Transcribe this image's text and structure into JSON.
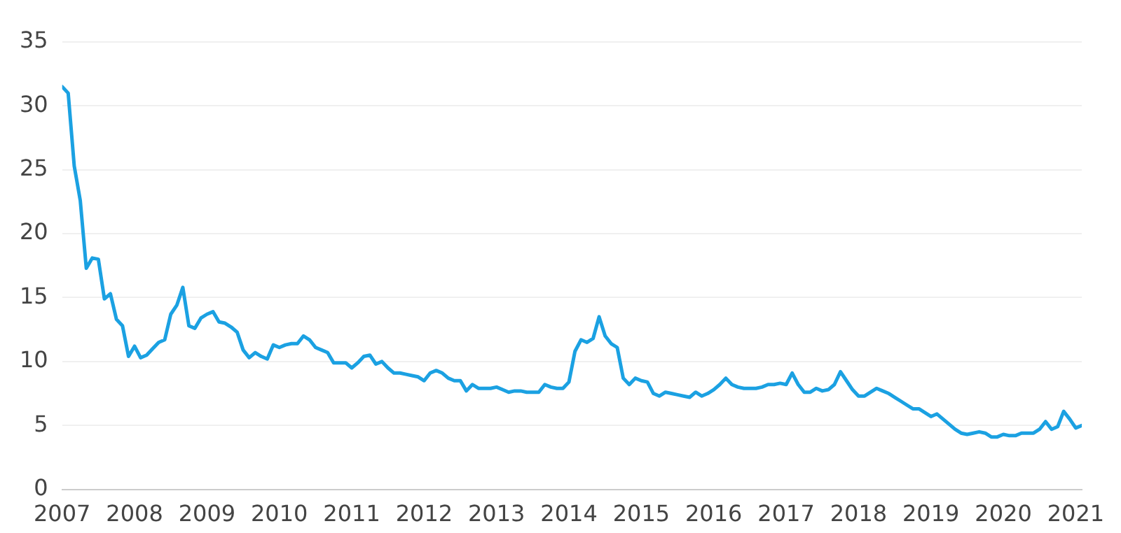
{
  "chart_data": {
    "type": "line",
    "xlim": [
      "2007-01",
      "2021-02"
    ],
    "xticks": [
      "2007",
      "2008",
      "2009",
      "2010",
      "2011",
      "2012",
      "2013",
      "2014",
      "2015",
      "2016",
      "2017",
      "2018",
      "2019",
      "2020",
      "2021"
    ],
    "ylim": [
      0,
      35
    ],
    "yticks": [
      0,
      5,
      10,
      15,
      20,
      25,
      30,
      35
    ],
    "grid": "y",
    "legend": false,
    "marker": "none",
    "line_style": "solid",
    "x": [
      "2007-01",
      "2007-02",
      "2007-03",
      "2007-04",
      "2007-05",
      "2007-06",
      "2007-07",
      "2007-08",
      "2007-09",
      "2007-10",
      "2007-11",
      "2007-12",
      "2008-01",
      "2008-02",
      "2008-03",
      "2008-04",
      "2008-05",
      "2008-06",
      "2008-07",
      "2008-08",
      "2008-09",
      "2008-10",
      "2008-11",
      "2008-12",
      "2009-01",
      "2009-02",
      "2009-03",
      "2009-04",
      "2009-05",
      "2009-06",
      "2009-07",
      "2009-08",
      "2009-09",
      "2009-10",
      "2009-11",
      "2009-12",
      "2010-01",
      "2010-02",
      "2010-03",
      "2010-04",
      "2010-05",
      "2010-06",
      "2010-07",
      "2010-08",
      "2010-09",
      "2010-10",
      "2010-11",
      "2010-12",
      "2011-01",
      "2011-02",
      "2011-03",
      "2011-04",
      "2011-05",
      "2011-06",
      "2011-07",
      "2011-08",
      "2011-09",
      "2011-10",
      "2011-11",
      "2011-12",
      "2012-01",
      "2012-02",
      "2012-03",
      "2012-04",
      "2012-05",
      "2012-06",
      "2012-07",
      "2012-08",
      "2012-09",
      "2012-10",
      "2012-11",
      "2012-12",
      "2013-01",
      "2013-02",
      "2013-03",
      "2013-04",
      "2013-05",
      "2013-06",
      "2013-07",
      "2013-08",
      "2013-09",
      "2013-10",
      "2013-11",
      "2013-12",
      "2014-01",
      "2014-02",
      "2014-03",
      "2014-04",
      "2014-05",
      "2014-06",
      "2014-07",
      "2014-08",
      "2014-09",
      "2014-10",
      "2014-11",
      "2014-12",
      "2015-01",
      "2015-02",
      "2015-03",
      "2015-04",
      "2015-05",
      "2015-06",
      "2015-07",
      "2015-08",
      "2015-09",
      "2015-10",
      "2015-11",
      "2015-12",
      "2016-01",
      "2016-02",
      "2016-03",
      "2016-04",
      "2016-05",
      "2016-06",
      "2016-07",
      "2016-08",
      "2016-09",
      "2016-10",
      "2016-11",
      "2016-12",
      "2017-01",
      "2017-02",
      "2017-03",
      "2017-04",
      "2017-05",
      "2017-06",
      "2017-07",
      "2017-08",
      "2017-09",
      "2017-10",
      "2017-11",
      "2017-12",
      "2018-01",
      "2018-02",
      "2018-03",
      "2018-04",
      "2018-05",
      "2018-06",
      "2018-07",
      "2018-08",
      "2018-09",
      "2018-10",
      "2018-11",
      "2018-12",
      "2019-01",
      "2019-02",
      "2019-03",
      "2019-04",
      "2019-05",
      "2019-06",
      "2019-07",
      "2019-08",
      "2019-09",
      "2019-10",
      "2019-11",
      "2019-12",
      "2020-01",
      "2020-02",
      "2020-03",
      "2020-04",
      "2020-05",
      "2020-06",
      "2020-07",
      "2020-08",
      "2020-09",
      "2020-10",
      "2020-11",
      "2020-12",
      "2021-01",
      "2021-02"
    ],
    "series": [
      {
        "color": "#1ba1e2",
        "values": [
          31.5,
          31.0,
          25.3,
          22.6,
          17.3,
          18.1,
          18.0,
          14.9,
          15.3,
          13.3,
          12.8,
          10.4,
          11.2,
          10.3,
          10.5,
          11.0,
          11.5,
          11.7,
          13.7,
          14.4,
          15.8,
          12.8,
          12.6,
          13.4,
          13.7,
          13.9,
          13.1,
          13.0,
          12.7,
          12.3,
          10.9,
          10.3,
          10.7,
          10.4,
          10.2,
          11.3,
          11.1,
          11.3,
          11.4,
          11.4,
          12.0,
          11.7,
          11.1,
          10.9,
          10.7,
          9.9,
          9.9,
          9.9,
          9.5,
          9.9,
          10.4,
          10.5,
          9.8,
          10.0,
          9.5,
          9.1,
          9.1,
          9.0,
          8.9,
          8.8,
          8.5,
          9.1,
          9.3,
          9.1,
          8.7,
          8.5,
          8.5,
          7.7,
          8.2,
          7.9,
          7.9,
          7.9,
          8.0,
          7.8,
          7.6,
          7.7,
          7.7,
          7.6,
          7.6,
          7.6,
          8.2,
          8.0,
          7.9,
          7.9,
          8.4,
          10.8,
          11.7,
          11.5,
          11.8,
          13.5,
          12.0,
          11.4,
          11.1,
          8.7,
          8.2,
          8.7,
          8.5,
          8.4,
          7.5,
          7.3,
          7.6,
          7.5,
          7.4,
          7.3,
          7.2,
          7.6,
          7.3,
          7.5,
          7.8,
          8.2,
          8.7,
          8.2,
          8.0,
          7.9,
          7.9,
          7.9,
          8.0,
          8.2,
          8.2,
          8.3,
          8.2,
          9.1,
          8.2,
          7.6,
          7.6,
          7.9,
          7.7,
          7.8,
          8.2,
          9.2,
          8.5,
          7.8,
          7.3,
          7.3,
          7.6,
          7.9,
          7.7,
          7.5,
          7.2,
          6.9,
          6.6,
          6.3,
          6.3,
          6.0,
          5.7,
          5.9,
          5.5,
          5.1,
          4.7,
          4.4,
          4.3,
          4.4,
          4.5,
          4.4,
          4.1,
          4.1,
          4.3,
          4.2,
          4.2,
          4.4,
          4.4,
          4.4,
          4.7,
          5.3,
          4.7,
          4.9,
          6.1,
          5.5,
          4.8,
          5.0
        ]
      }
    ]
  }
}
